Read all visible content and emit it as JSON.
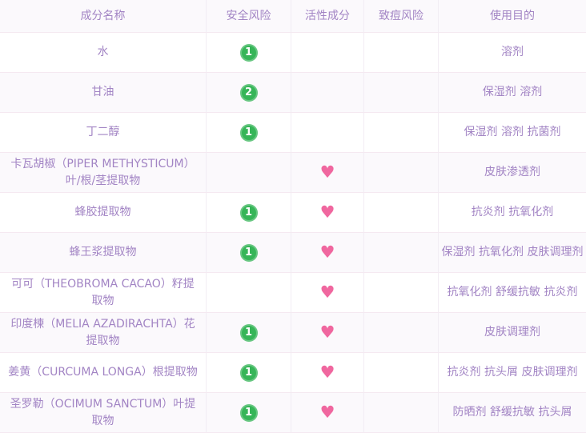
{
  "table": {
    "heart_icon": "♥",
    "colors": {
      "text_purple": "#a284c4",
      "badge_green": "#36b558",
      "heart_pink": "#f0679f",
      "stripe_bg": "#fbf9fc"
    },
    "columns": [
      {
        "label": "成分名称"
      },
      {
        "label": "安全风险"
      },
      {
        "label": "活性成分"
      },
      {
        "label": "致痘风险"
      },
      {
        "label": "使用目的"
      }
    ],
    "rows": [
      {
        "name": "水",
        "safety": "1",
        "active": false,
        "acne": "",
        "purpose": "溶剂"
      },
      {
        "name": "甘油",
        "safety": "2",
        "active": false,
        "acne": "",
        "purpose": "保湿剂 溶剂"
      },
      {
        "name": "丁二醇",
        "safety": "1",
        "active": false,
        "acne": "",
        "purpose": "保湿剂 溶剂 抗菌剂"
      },
      {
        "name": "卡瓦胡椒（PIPER METHYSTICUM）叶/根/茎提取物",
        "safety": "",
        "active": true,
        "acne": "",
        "purpose": "皮肤渗透剂"
      },
      {
        "name": "蜂胶提取物",
        "safety": "1",
        "active": true,
        "acne": "",
        "purpose": "抗炎剂 抗氧化剂"
      },
      {
        "name": "蜂王浆提取物",
        "safety": "1",
        "active": true,
        "acne": "",
        "purpose": "保湿剂 抗氧化剂 皮肤调理剂"
      },
      {
        "name": "可可（THEOBROMA CACAO）籽提取物",
        "safety": "",
        "active": true,
        "acne": "",
        "purpose": "抗氧化剂 舒缓抗敏 抗炎剂"
      },
      {
        "name": "印度楝（MELIA AZADIRACHTA）花提取物",
        "safety": "1",
        "active": true,
        "acne": "",
        "purpose": "皮肤调理剂"
      },
      {
        "name": "姜黄（CURCUMA LONGA）根提取物",
        "safety": "1",
        "active": true,
        "acne": "",
        "purpose": "抗炎剂 抗头屑 皮肤调理剂"
      },
      {
        "name": "圣罗勒（OCIMUM SANCTUM）叶提取物",
        "safety": "1",
        "active": true,
        "acne": "",
        "purpose": "防晒剂 舒缓抗敏 抗头屑"
      }
    ]
  }
}
